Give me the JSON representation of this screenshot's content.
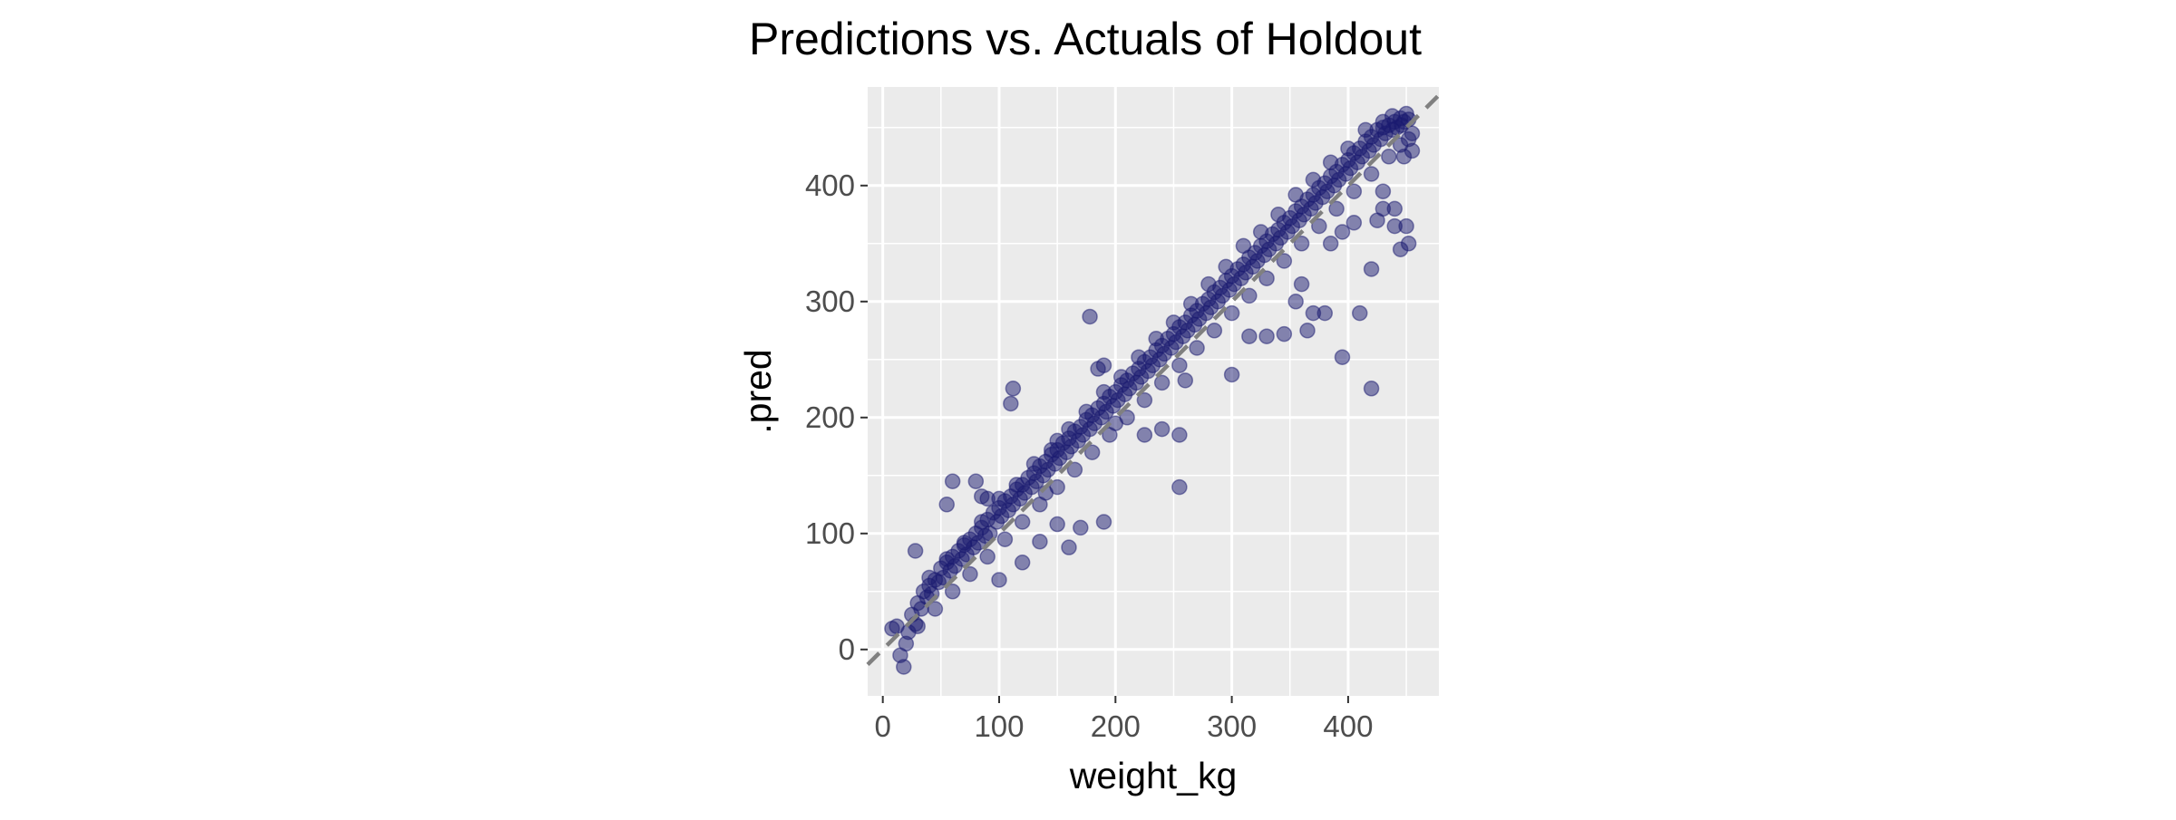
{
  "chart_data": {
    "type": "scatter",
    "title": "Predictions vs. Actuals of Holdout",
    "xlabel": "weight_kg",
    "ylabel": ".pred",
    "xlim": [
      -13,
      478
    ],
    "ylim": [
      -40,
      485
    ],
    "xticks": [
      0,
      100,
      200,
      300,
      400
    ],
    "yticks": [
      0,
      100,
      200,
      300,
      400
    ],
    "grid": true,
    "reference_line": {
      "slope": 1,
      "intercept": 0,
      "style": "dashed",
      "color": "#808080"
    },
    "point_color": "#191970",
    "panel_background": "#ebebeb",
    "series": [
      {
        "values": [
          [
            8,
            18
          ],
          [
            12,
            20
          ],
          [
            18,
            -15
          ],
          [
            15,
            -5
          ],
          [
            20,
            5
          ],
          [
            22,
            15
          ],
          [
            25,
            30
          ],
          [
            28,
            22
          ],
          [
            30,
            40
          ],
          [
            33,
            35
          ],
          [
            35,
            50
          ],
          [
            38,
            45
          ],
          [
            40,
            55
          ],
          [
            42,
            48
          ],
          [
            45,
            60
          ],
          [
            48,
            58
          ],
          [
            50,
            70
          ],
          [
            52,
            62
          ],
          [
            55,
            75
          ],
          [
            58,
            68
          ],
          [
            60,
            80
          ],
          [
            62,
            72
          ],
          [
            65,
            85
          ],
          [
            68,
            78
          ],
          [
            70,
            90
          ],
          [
            72,
            82
          ],
          [
            75,
            95
          ],
          [
            78,
            88
          ],
          [
            80,
            100
          ],
          [
            82,
            92
          ],
          [
            85,
            105
          ],
          [
            88,
            98
          ],
          [
            90,
            112
          ],
          [
            92,
            100
          ],
          [
            95,
            118
          ],
          [
            98,
            110
          ],
          [
            100,
            122
          ],
          [
            102,
            115
          ],
          [
            105,
            128
          ],
          [
            108,
            120
          ],
          [
            110,
            132
          ],
          [
            112,
            125
          ],
          [
            115,
            138
          ],
          [
            118,
            130
          ],
          [
            120,
            142
          ],
          [
            122,
            135
          ],
          [
            125,
            148
          ],
          [
            128,
            140
          ],
          [
            130,
            152
          ],
          [
            132,
            145
          ],
          [
            135,
            158
          ],
          [
            138,
            150
          ],
          [
            140,
            162
          ],
          [
            142,
            155
          ],
          [
            145,
            168
          ],
          [
            148,
            160
          ],
          [
            150,
            172
          ],
          [
            152,
            165
          ],
          [
            155,
            178
          ],
          [
            158,
            170
          ],
          [
            160,
            182
          ],
          [
            162,
            175
          ],
          [
            165,
            188
          ],
          [
            168,
            180
          ],
          [
            170,
            192
          ],
          [
            172,
            185
          ],
          [
            175,
            198
          ],
          [
            178,
            190
          ],
          [
            180,
            202
          ],
          [
            182,
            195
          ],
          [
            185,
            208
          ],
          [
            188,
            200
          ],
          [
            190,
            212
          ],
          [
            192,
            205
          ],
          [
            195,
            218
          ],
          [
            198,
            210
          ],
          [
            200,
            222
          ],
          [
            202,
            215
          ],
          [
            205,
            228
          ],
          [
            208,
            220
          ],
          [
            210,
            232
          ],
          [
            212,
            225
          ],
          [
            215,
            238
          ],
          [
            218,
            230
          ],
          [
            220,
            242
          ],
          [
            222,
            235
          ],
          [
            225,
            248
          ],
          [
            228,
            240
          ],
          [
            230,
            252
          ],
          [
            232,
            245
          ],
          [
            235,
            258
          ],
          [
            238,
            250
          ],
          [
            240,
            262
          ],
          [
            242,
            255
          ],
          [
            245,
            268
          ],
          [
            248,
            260
          ],
          [
            250,
            272
          ],
          [
            252,
            265
          ],
          [
            255,
            278
          ],
          [
            258,
            270
          ],
          [
            260,
            282
          ],
          [
            262,
            275
          ],
          [
            265,
            288
          ],
          [
            268,
            280
          ],
          [
            270,
            292
          ],
          [
            272,
            285
          ],
          [
            275,
            298
          ],
          [
            278,
            290
          ],
          [
            280,
            302
          ],
          [
            282,
            295
          ],
          [
            285,
            308
          ],
          [
            288,
            300
          ],
          [
            290,
            312
          ],
          [
            292,
            305
          ],
          [
            295,
            318
          ],
          [
            298,
            310
          ],
          [
            300,
            322
          ],
          [
            302,
            315
          ],
          [
            305,
            328
          ],
          [
            308,
            320
          ],
          [
            310,
            332
          ],
          [
            312,
            325
          ],
          [
            315,
            338
          ],
          [
            318,
            330
          ],
          [
            320,
            342
          ],
          [
            322,
            335
          ],
          [
            325,
            348
          ],
          [
            328,
            340
          ],
          [
            330,
            352
          ],
          [
            332,
            345
          ],
          [
            335,
            358
          ],
          [
            338,
            350
          ],
          [
            340,
            362
          ],
          [
            342,
            355
          ],
          [
            345,
            368
          ],
          [
            348,
            360
          ],
          [
            350,
            372
          ],
          [
            352,
            365
          ],
          [
            355,
            378
          ],
          [
            358,
            370
          ],
          [
            360,
            382
          ],
          [
            362,
            375
          ],
          [
            365,
            388
          ],
          [
            368,
            380
          ],
          [
            370,
            392
          ],
          [
            372,
            385
          ],
          [
            375,
            398
          ],
          [
            378,
            390
          ],
          [
            380,
            402
          ],
          [
            382,
            395
          ],
          [
            385,
            408
          ],
          [
            388,
            400
          ],
          [
            390,
            412
          ],
          [
            392,
            405
          ],
          [
            395,
            418
          ],
          [
            398,
            410
          ],
          [
            400,
            422
          ],
          [
            402,
            415
          ],
          [
            405,
            428
          ],
          [
            408,
            420
          ],
          [
            410,
            432
          ],
          [
            412,
            425
          ],
          [
            415,
            438
          ],
          [
            418,
            430
          ],
          [
            420,
            442
          ],
          [
            422,
            435
          ],
          [
            425,
            448
          ],
          [
            428,
            440
          ],
          [
            430,
            450
          ],
          [
            432,
            445
          ],
          [
            435,
            452
          ],
          [
            438,
            448
          ],
          [
            440,
            455
          ],
          [
            442,
            450
          ],
          [
            445,
            458
          ],
          [
            448,
            455
          ],
          [
            450,
            462
          ],
          [
            452,
            440
          ],
          [
            455,
            430
          ],
          [
            448,
            425
          ],
          [
            30,
            20
          ],
          [
            45,
            35
          ],
          [
            60,
            50
          ],
          [
            75,
            65
          ],
          [
            90,
            80
          ],
          [
            105,
            95
          ],
          [
            120,
            110
          ],
          [
            135,
            125
          ],
          [
            150,
            140
          ],
          [
            165,
            155
          ],
          [
            180,
            170
          ],
          [
            195,
            185
          ],
          [
            210,
            200
          ],
          [
            225,
            215
          ],
          [
            240,
            230
          ],
          [
            255,
            245
          ],
          [
            270,
            260
          ],
          [
            285,
            275
          ],
          [
            300,
            290
          ],
          [
            315,
            305
          ],
          [
            330,
            320
          ],
          [
            345,
            335
          ],
          [
            360,
            350
          ],
          [
            375,
            365
          ],
          [
            390,
            380
          ],
          [
            405,
            395
          ],
          [
            420,
            410
          ],
          [
            435,
            425
          ],
          [
            445,
            435
          ],
          [
            455,
            445
          ],
          [
            40,
            62
          ],
          [
            55,
            78
          ],
          [
            70,
            92
          ],
          [
            85,
            110
          ],
          [
            100,
            130
          ],
          [
            115,
            142
          ],
          [
            130,
            160
          ],
          [
            145,
            172
          ],
          [
            160,
            190
          ],
          [
            175,
            205
          ],
          [
            190,
            222
          ],
          [
            205,
            235
          ],
          [
            220,
            252
          ],
          [
            235,
            268
          ],
          [
            250,
            282
          ],
          [
            265,
            298
          ],
          [
            280,
            315
          ],
          [
            295,
            330
          ],
          [
            310,
            348
          ],
          [
            325,
            360
          ],
          [
            340,
            375
          ],
          [
            355,
            392
          ],
          [
            370,
            405
          ],
          [
            385,
            420
          ],
          [
            400,
            432
          ],
          [
            415,
            448
          ],
          [
            430,
            455
          ],
          [
            438,
            460
          ],
          [
            446,
            452
          ],
          [
            452,
            457
          ],
          [
            28,
            85
          ],
          [
            55,
            125
          ],
          [
            60,
            145
          ],
          [
            80,
            145
          ],
          [
            85,
            132
          ],
          [
            90,
            130
          ],
          [
            110,
            212
          ],
          [
            112,
            225
          ],
          [
            140,
            135
          ],
          [
            150,
            180
          ],
          [
            178,
            287
          ],
          [
            185,
            242
          ],
          [
            190,
            245
          ],
          [
            240,
            190
          ],
          [
            255,
            185
          ],
          [
            255,
            140
          ],
          [
            315,
            270
          ],
          [
            300,
            237
          ],
          [
            365,
            275
          ],
          [
            380,
            290
          ],
          [
            395,
            252
          ],
          [
            410,
            290
          ],
          [
            420,
            225
          ],
          [
            420,
            328
          ],
          [
            445,
            345
          ],
          [
            452,
            350
          ],
          [
            440,
            365
          ],
          [
            430,
            380
          ],
          [
            425,
            370
          ],
          [
            450,
            365
          ],
          [
            100,
            60
          ],
          [
            120,
            75
          ],
          [
            135,
            93
          ],
          [
            160,
            88
          ],
          [
            170,
            105
          ],
          [
            150,
            108
          ],
          [
            190,
            110
          ],
          [
            200,
            195
          ],
          [
            225,
            185
          ],
          [
            330,
            270
          ],
          [
            345,
            272
          ],
          [
            360,
            315
          ],
          [
            370,
            290
          ],
          [
            385,
            350
          ],
          [
            395,
            360
          ],
          [
            405,
            368
          ],
          [
            430,
            395
          ],
          [
            440,
            380
          ],
          [
            355,
            300
          ],
          [
            260,
            232
          ]
        ]
      }
    ]
  }
}
